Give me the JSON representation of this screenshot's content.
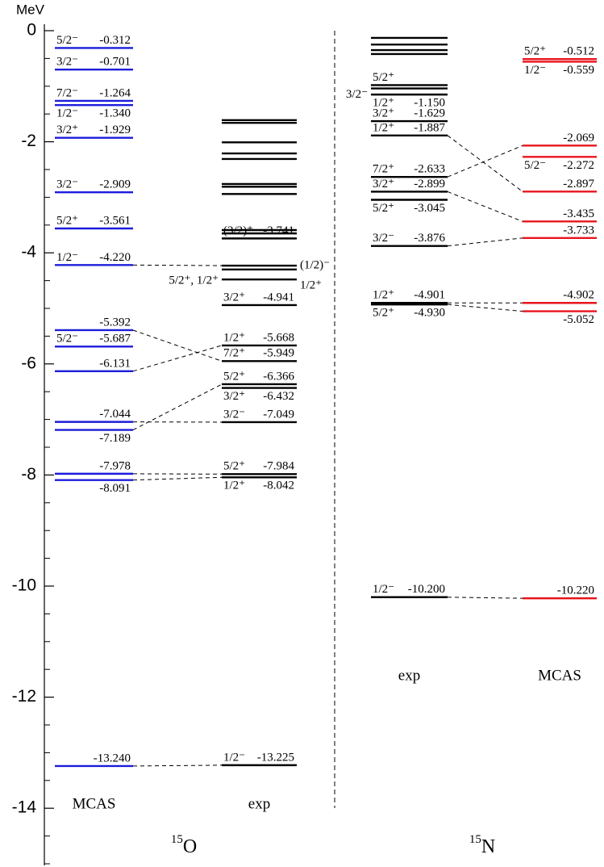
{
  "chart_data": {
    "type": "levels",
    "y_label": "MeV",
    "ylim": [
      -15,
      0
    ],
    "yticks": [
      0,
      -2,
      -4,
      -6,
      -8,
      -10,
      -12,
      -14
    ],
    "yminorticks": [
      -0.5,
      -1,
      -1.5,
      -2.5,
      -3,
      -3.5,
      -4.5,
      -5,
      -5.5,
      -6.5,
      -7,
      -7.5,
      -8.5,
      -9,
      -9.5,
      -10.5,
      -11,
      -11.5,
      -12.5,
      -13,
      -13.5,
      -14.5,
      -15
    ],
    "nuclei": [
      {
        "mass": "15",
        "symbol": "O"
      },
      {
        "mass": "15",
        "symbol": "N"
      }
    ],
    "series": [
      {
        "name": "MCAS",
        "color": "#1c1cdc",
        "values": [
          -0.312,
          -0.701,
          -1.264,
          -1.34,
          -1.929,
          -2.909,
          -3.561,
          -4.22,
          -5.392,
          -5.687,
          -6.131,
          -7.044,
          -7.189,
          -7.978,
          -8.091,
          -13.24
        ],
        "value_labels": [
          "-0.312",
          "-0.701",
          "-1.264",
          "-1.340",
          "-1.929",
          "-2.909",
          "-3.561",
          "-4.220",
          "-5.392",
          "-5.687",
          "-6.131",
          "-7.044",
          "-7.189",
          "-7.978",
          "-8.091",
          "-13.240"
        ],
        "spins": [
          "5/2⁻",
          "3/2⁻",
          "7/2⁻",
          "1/2⁻",
          "3/2⁺",
          "3/2⁻",
          "5/2⁺",
          "1/2⁻",
          null,
          "5/2⁻",
          null,
          null,
          null,
          null,
          null,
          null
        ]
      },
      {
        "name": "exp",
        "color": "#000000",
        "values": [
          -1.61,
          -1.66,
          -2.01,
          -2.21,
          -2.31,
          -2.76,
          -2.81,
          -2.94,
          -3.59,
          -3.65,
          -3.741,
          -4.23,
          -4.3,
          -4.48,
          -4.941,
          -5.668,
          -5.949,
          -6.366,
          -6.432,
          -7.049,
          -7.984,
          -8.042,
          -13.225
        ],
        "value_labels": [
          null,
          null,
          null,
          null,
          null,
          null,
          null,
          null,
          null,
          null,
          "-3.741",
          null,
          null,
          null,
          "-4.941",
          "-5.668",
          "-5.949",
          "-6.366",
          "-6.432",
          "-7.049",
          "-7.984",
          "-8.042",
          "-13.225"
        ],
        "spins": [
          null,
          null,
          null,
          null,
          null,
          null,
          null,
          null,
          null,
          null,
          "(3/2)⁺",
          "(1/2)⁻",
          "5/2⁺, 1/2⁺",
          "1/2⁺",
          "3/2⁺",
          "1/2⁺",
          "7/2⁺",
          "5/2⁺",
          "3/2⁺",
          "3/2⁻",
          "5/2⁺",
          "1/2⁺",
          "1/2⁻"
        ]
      },
      {
        "name": "exp",
        "color": "#000000",
        "values": [
          -0.13,
          -0.25,
          -0.35,
          -0.42,
          -0.98,
          -1.04,
          -1.15,
          -1.629,
          -1.887,
          -2.633,
          -2.899,
          -3.045,
          -3.876,
          -4.901,
          -4.93,
          -10.2
        ],
        "value_labels": [
          null,
          null,
          null,
          null,
          null,
          null,
          "-1.150",
          "-1.629",
          "-1.887",
          "-2.633",
          "-2.899",
          "-3.045",
          "-3.876",
          "-4.901",
          "-4.930",
          "-10.200"
        ],
        "spins": [
          null,
          null,
          null,
          null,
          "5/2⁺",
          "3/2⁻",
          "1/2⁺",
          "3/2⁺",
          "1/2⁺",
          "7/2⁺",
          "3/2⁺",
          "5/2⁺",
          "3/2⁻",
          "1/2⁺",
          "5/2⁺",
          "1/2⁻"
        ]
      },
      {
        "name": "MCAS",
        "color": "#e8141e",
        "values": [
          -0.512,
          -0.559,
          -2.069,
          -2.272,
          -2.897,
          -3.435,
          -3.733,
          -4.902,
          -5.052,
          -10.22
        ],
        "value_labels": [
          "-0.512",
          "-0.559",
          "-2.069",
          "-2.272",
          "-2.897",
          "-3.435",
          "-3.733",
          "-4.902",
          "-5.052",
          "-10.220"
        ],
        "spins": [
          "5/2⁺",
          "1/2⁻",
          null,
          "5/2⁻",
          null,
          null,
          null,
          null,
          null,
          null
        ]
      }
    ]
  }
}
